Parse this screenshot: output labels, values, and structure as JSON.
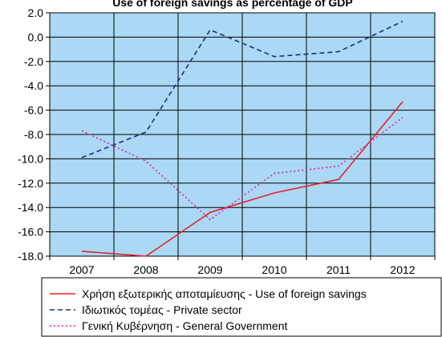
{
  "chart_data": {
    "type": "line",
    "title": "Use of foreign savings as percentage of GDP",
    "xlabel": "",
    "ylabel": "",
    "categories": [
      "2007",
      "2008",
      "2009",
      "2010",
      "2011",
      "2012"
    ],
    "ylim": [
      -18.0,
      2.0
    ],
    "yticks": [
      "2.0",
      "0.0",
      "-2.0",
      "-4.0",
      "-6.0",
      "-8.0",
      "-10.0",
      "-12.0",
      "-14.0",
      "-16.0",
      "-18.0"
    ],
    "grid": true,
    "legend_position": "bottom",
    "background_color": "#aad8f5",
    "series": [
      {
        "name": "Χρήση εξωτερικής αποταμίευσης - Use of foreign savings",
        "color": "#e8202a",
        "dash": "solid",
        "values": [
          -17.6,
          -18.0,
          -14.4,
          -12.8,
          -11.7,
          -5.3
        ]
      },
      {
        "name": "Ιδιωτικός τομέας - Private sector",
        "color": "#1f2d7a",
        "dash": "dashed",
        "values": [
          -9.9,
          -7.8,
          0.6,
          -1.6,
          -1.2,
          1.3
        ]
      },
      {
        "name": "Γενική Κυβέρνηση - General Government",
        "color": "#e020b0",
        "dash": "dotted",
        "values": [
          -7.7,
          -10.2,
          -15.0,
          -11.2,
          -10.6,
          -6.6
        ]
      }
    ]
  }
}
